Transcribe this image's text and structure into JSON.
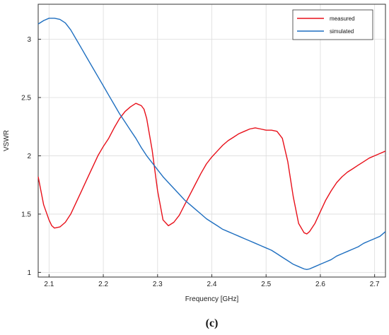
{
  "chart_data": {
    "type": "line",
    "title": "",
    "xlabel": "Frequency [GHz]",
    "ylabel": "VSWR",
    "xlim": [
      2.08,
      2.72
    ],
    "ylim": [
      0.96,
      3.3
    ],
    "xticks": [
      "2.1",
      "2.2",
      "2.3",
      "2.4",
      "2.5",
      "2.6",
      "2.7"
    ],
    "yticks": [
      "1",
      "1.5",
      "2",
      "2.5",
      "3"
    ],
    "grid": true,
    "legend": "top-right",
    "caption": "(c)",
    "series": [
      {
        "name": "measured",
        "color": "#e8101a",
        "x": [
          2.08,
          2.09,
          2.1,
          2.105,
          2.11,
          2.12,
          2.13,
          2.14,
          2.15,
          2.16,
          2.17,
          2.18,
          2.19,
          2.2,
          2.21,
          2.22,
          2.23,
          2.24,
          2.25,
          2.26,
          2.27,
          2.275,
          2.28,
          2.29,
          2.3,
          2.31,
          2.32,
          2.33,
          2.34,
          2.35,
          2.36,
          2.37,
          2.38,
          2.39,
          2.4,
          2.41,
          2.42,
          2.43,
          2.44,
          2.45,
          2.46,
          2.47,
          2.48,
          2.49,
          2.5,
          2.51,
          2.52,
          2.53,
          2.54,
          2.55,
          2.56,
          2.57,
          2.575,
          2.58,
          2.59,
          2.6,
          2.61,
          2.62,
          2.63,
          2.64,
          2.65,
          2.66,
          2.67,
          2.68,
          2.69,
          2.7,
          2.71,
          2.72
        ],
        "y": [
          1.82,
          1.58,
          1.45,
          1.4,
          1.38,
          1.39,
          1.43,
          1.5,
          1.6,
          1.7,
          1.8,
          1.9,
          2.0,
          2.08,
          2.15,
          2.24,
          2.32,
          2.38,
          2.42,
          2.45,
          2.43,
          2.4,
          2.32,
          2.05,
          1.7,
          1.45,
          1.4,
          1.43,
          1.49,
          1.58,
          1.67,
          1.76,
          1.85,
          1.93,
          1.99,
          2.04,
          2.09,
          2.13,
          2.16,
          2.19,
          2.21,
          2.23,
          2.24,
          2.23,
          2.22,
          2.22,
          2.21,
          2.15,
          1.95,
          1.65,
          1.42,
          1.34,
          1.33,
          1.35,
          1.42,
          1.52,
          1.62,
          1.7,
          1.77,
          1.82,
          1.86,
          1.89,
          1.92,
          1.95,
          1.98,
          2.0,
          2.02,
          2.04
        ]
      },
      {
        "name": "simulated",
        "color": "#1f6fc0",
        "x": [
          2.08,
          2.09,
          2.1,
          2.11,
          2.12,
          2.13,
          2.14,
          2.15,
          2.16,
          2.17,
          2.18,
          2.19,
          2.2,
          2.21,
          2.22,
          2.23,
          2.24,
          2.25,
          2.26,
          2.27,
          2.28,
          2.29,
          2.3,
          2.31,
          2.32,
          2.33,
          2.34,
          2.35,
          2.36,
          2.37,
          2.38,
          2.39,
          2.4,
          2.41,
          2.42,
          2.43,
          2.44,
          2.45,
          2.46,
          2.47,
          2.48,
          2.49,
          2.5,
          2.51,
          2.52,
          2.53,
          2.54,
          2.55,
          2.56,
          2.57,
          2.575,
          2.58,
          2.59,
          2.6,
          2.61,
          2.62,
          2.63,
          2.64,
          2.65,
          2.66,
          2.67,
          2.68,
          2.69,
          2.7,
          2.71,
          2.72
        ],
        "y": [
          3.13,
          3.16,
          3.18,
          3.18,
          3.17,
          3.14,
          3.08,
          3.0,
          2.92,
          2.84,
          2.76,
          2.68,
          2.6,
          2.52,
          2.44,
          2.36,
          2.29,
          2.22,
          2.15,
          2.07,
          2.0,
          1.94,
          1.88,
          1.82,
          1.77,
          1.72,
          1.67,
          1.62,
          1.58,
          1.54,
          1.5,
          1.46,
          1.43,
          1.4,
          1.37,
          1.35,
          1.33,
          1.31,
          1.29,
          1.27,
          1.25,
          1.23,
          1.21,
          1.19,
          1.16,
          1.13,
          1.1,
          1.07,
          1.05,
          1.03,
          1.025,
          1.03,
          1.05,
          1.07,
          1.09,
          1.11,
          1.14,
          1.16,
          1.18,
          1.2,
          1.22,
          1.25,
          1.27,
          1.29,
          1.31,
          1.35
        ]
      }
    ]
  }
}
